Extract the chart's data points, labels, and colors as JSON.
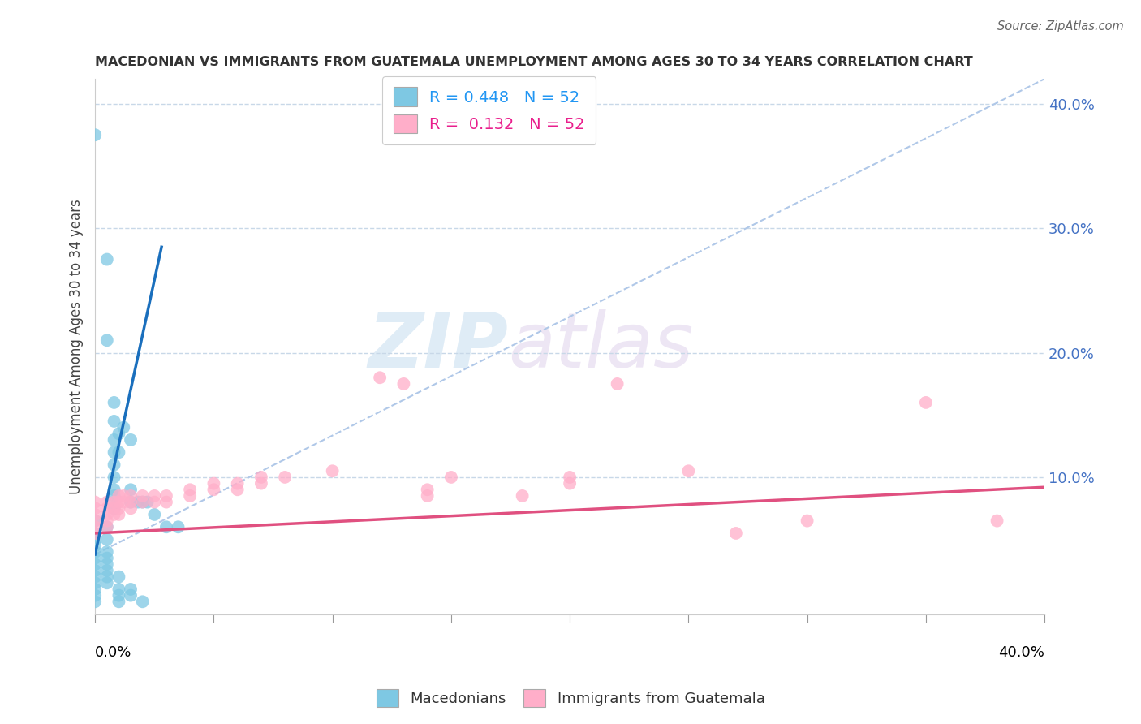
{
  "title": "MACEDONIAN VS IMMIGRANTS FROM GUATEMALA UNEMPLOYMENT AMONG AGES 30 TO 34 YEARS CORRELATION CHART",
  "source": "Source: ZipAtlas.com",
  "xlim": [
    0.0,
    0.4
  ],
  "ylim": [
    -0.01,
    0.42
  ],
  "ylabel_ticks": [
    0.1,
    0.2,
    0.3,
    0.4
  ],
  "ylabel_labels": [
    "10.0%",
    "20.0%",
    "30.0%",
    "40.0%"
  ],
  "watermark_zip": "ZIP",
  "watermark_atlas": "atlas",
  "blue_color": "#7ec8e3",
  "pink_color": "#ffaec9",
  "blue_line_color": "#1a6fbd",
  "pink_line_color": "#e05080",
  "dash_line_color": "#b0c8e8",
  "grid_color": "#c8d8e8",
  "blue_trend_x": [
    0.0,
    0.028
  ],
  "blue_trend_y": [
    0.038,
    0.285
  ],
  "pink_trend_x": [
    0.0,
    0.4
  ],
  "pink_trend_y": [
    0.055,
    0.092
  ],
  "dash_trend_x": [
    0.0,
    0.4
  ],
  "dash_trend_y": [
    0.038,
    0.42
  ],
  "blue_scatter": [
    [
      0.0,
      0.375
    ],
    [
      0.005,
      0.275
    ],
    [
      0.005,
      0.21
    ],
    [
      0.008,
      0.16
    ],
    [
      0.008,
      0.145
    ],
    [
      0.008,
      0.13
    ],
    [
      0.008,
      0.12
    ],
    [
      0.008,
      0.11
    ],
    [
      0.008,
      0.1
    ],
    [
      0.008,
      0.09
    ],
    [
      0.008,
      0.085
    ],
    [
      0.008,
      0.075
    ],
    [
      0.01,
      0.135
    ],
    [
      0.01,
      0.12
    ],
    [
      0.012,
      0.14
    ],
    [
      0.015,
      0.13
    ],
    [
      0.015,
      0.09
    ],
    [
      0.015,
      0.08
    ],
    [
      0.018,
      0.08
    ],
    [
      0.02,
      0.08
    ],
    [
      0.022,
      0.08
    ],
    [
      0.025,
      0.07
    ],
    [
      0.03,
      0.06
    ],
    [
      0.035,
      0.06
    ],
    [
      0.0,
      0.065
    ],
    [
      0.0,
      0.055
    ],
    [
      0.0,
      0.05
    ],
    [
      0.0,
      0.045
    ],
    [
      0.0,
      0.04
    ],
    [
      0.0,
      0.035
    ],
    [
      0.0,
      0.03
    ],
    [
      0.0,
      0.025
    ],
    [
      0.0,
      0.02
    ],
    [
      0.0,
      0.015
    ],
    [
      0.0,
      0.01
    ],
    [
      0.0,
      0.005
    ],
    [
      0.0,
      0.0
    ],
    [
      0.005,
      0.06
    ],
    [
      0.005,
      0.05
    ],
    [
      0.005,
      0.04
    ],
    [
      0.005,
      0.035
    ],
    [
      0.005,
      0.03
    ],
    [
      0.005,
      0.025
    ],
    [
      0.005,
      0.02
    ],
    [
      0.005,
      0.015
    ],
    [
      0.01,
      0.02
    ],
    [
      0.01,
      0.01
    ],
    [
      0.01,
      0.005
    ],
    [
      0.01,
      0.0
    ],
    [
      0.015,
      0.01
    ],
    [
      0.015,
      0.005
    ],
    [
      0.02,
      0.0
    ]
  ],
  "pink_scatter": [
    [
      0.0,
      0.08
    ],
    [
      0.0,
      0.075
    ],
    [
      0.0,
      0.07
    ],
    [
      0.0,
      0.065
    ],
    [
      0.0,
      0.06
    ],
    [
      0.0,
      0.055
    ],
    [
      0.005,
      0.08
    ],
    [
      0.005,
      0.075
    ],
    [
      0.005,
      0.07
    ],
    [
      0.005,
      0.065
    ],
    [
      0.005,
      0.06
    ],
    [
      0.008,
      0.08
    ],
    [
      0.008,
      0.075
    ],
    [
      0.008,
      0.07
    ],
    [
      0.01,
      0.085
    ],
    [
      0.01,
      0.08
    ],
    [
      0.01,
      0.075
    ],
    [
      0.01,
      0.07
    ],
    [
      0.012,
      0.085
    ],
    [
      0.012,
      0.08
    ],
    [
      0.015,
      0.085
    ],
    [
      0.015,
      0.08
    ],
    [
      0.015,
      0.075
    ],
    [
      0.02,
      0.085
    ],
    [
      0.02,
      0.08
    ],
    [
      0.025,
      0.085
    ],
    [
      0.025,
      0.08
    ],
    [
      0.03,
      0.085
    ],
    [
      0.03,
      0.08
    ],
    [
      0.04,
      0.09
    ],
    [
      0.04,
      0.085
    ],
    [
      0.05,
      0.095
    ],
    [
      0.05,
      0.09
    ],
    [
      0.06,
      0.095
    ],
    [
      0.06,
      0.09
    ],
    [
      0.07,
      0.1
    ],
    [
      0.07,
      0.095
    ],
    [
      0.08,
      0.1
    ],
    [
      0.1,
      0.105
    ],
    [
      0.12,
      0.18
    ],
    [
      0.13,
      0.175
    ],
    [
      0.14,
      0.09
    ],
    [
      0.14,
      0.085
    ],
    [
      0.15,
      0.1
    ],
    [
      0.18,
      0.085
    ],
    [
      0.2,
      0.1
    ],
    [
      0.2,
      0.095
    ],
    [
      0.22,
      0.175
    ],
    [
      0.25,
      0.105
    ],
    [
      0.27,
      0.055
    ],
    [
      0.3,
      0.065
    ],
    [
      0.35,
      0.16
    ],
    [
      0.38,
      0.065
    ]
  ]
}
